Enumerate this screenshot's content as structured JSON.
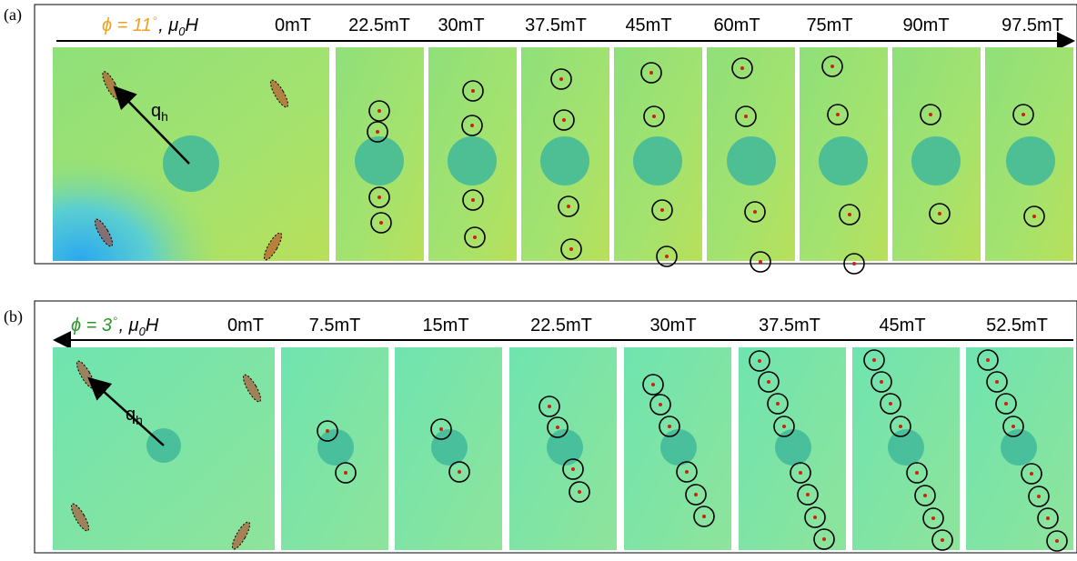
{
  "panels": [
    {
      "label": "(a)",
      "phi": "ϕ = 11",
      "degree": "∘",
      "field_mu": ", μ",
      "field_sub": "0",
      "field_H": "H",
      "fields": [
        "0mT",
        "22.5mT",
        "30mT",
        "37.5mT",
        "45mT",
        "60mT",
        "75mT",
        "90mT",
        "97.5mT"
      ],
      "q_main": "q",
      "q_sub": "h"
    },
    {
      "label": "(b)",
      "phi": "ϕ = 3",
      "degree": "∘",
      "field_mu": ", μ",
      "field_sub": "0",
      "field_H": "H",
      "fields": [
        "0mT",
        "7.5mT",
        "15mT",
        "22.5mT",
        "30mT",
        "37.5mT",
        "45mT",
        "52.5mT"
      ],
      "q_main": "q",
      "q_sub": "h"
    }
  ]
}
